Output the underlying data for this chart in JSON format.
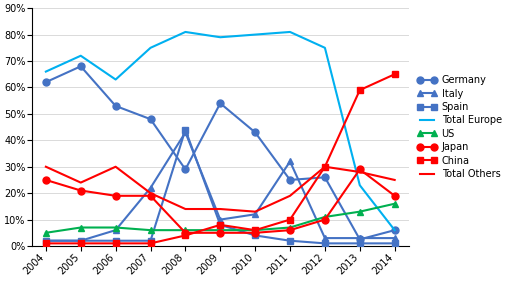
{
  "years": [
    2004,
    2005,
    2006,
    2007,
    2008,
    2009,
    2010,
    2011,
    2012,
    2013,
    2014
  ],
  "series": [
    {
      "name": "Germany",
      "values": [
        0.62,
        0.68,
        0.53,
        0.48,
        0.29,
        0.54,
        0.43,
        0.25,
        0.26,
        0.025,
        0.06
      ],
      "color": "#4472C4",
      "marker": "o",
      "linewidth": 1.5,
      "markersize": 5
    },
    {
      "name": "Italy",
      "values": [
        0.02,
        0.02,
        0.06,
        0.22,
        0.43,
        0.1,
        0.12,
        0.32,
        0.03,
        0.03,
        0.03
      ],
      "color": "#4472C4",
      "marker": "^",
      "linewidth": 1.5,
      "markersize": 5
    },
    {
      "name": "Spain",
      "values": [
        0.02,
        0.02,
        0.02,
        0.02,
        0.44,
        0.08,
        0.04,
        0.02,
        0.01,
        0.01,
        0.01
      ],
      "color": "#4472C4",
      "marker": "s",
      "linewidth": 1.5,
      "markersize": 5
    },
    {
      "name": "Total Europe",
      "values": [
        0.66,
        0.72,
        0.63,
        0.75,
        0.81,
        0.79,
        0.8,
        0.81,
        0.75,
        0.23,
        0.06
      ],
      "color": "#00B0F0",
      "marker": "None",
      "linewidth": 1.5,
      "markersize": 0
    },
    {
      "name": "US",
      "values": [
        0.05,
        0.07,
        0.07,
        0.06,
        0.06,
        0.06,
        0.06,
        0.07,
        0.11,
        0.13,
        0.16
      ],
      "color": "#00B050",
      "marker": "^",
      "linewidth": 1.5,
      "markersize": 5
    },
    {
      "name": "Japan",
      "values": [
        0.25,
        0.21,
        0.19,
        0.19,
        0.05,
        0.05,
        0.05,
        0.06,
        0.1,
        0.29,
        0.19
      ],
      "color": "#FF0000",
      "marker": "o",
      "linewidth": 1.5,
      "markersize": 5
    },
    {
      "name": "China",
      "values": [
        0.01,
        0.01,
        0.01,
        0.01,
        0.04,
        0.08,
        0.06,
        0.1,
        0.3,
        0.59,
        0.65
      ],
      "color": "#FF0000",
      "marker": "s",
      "linewidth": 1.5,
      "markersize": 5
    },
    {
      "name": "Total Others",
      "values": [
        0.3,
        0.24,
        0.3,
        0.2,
        0.14,
        0.14,
        0.13,
        0.19,
        0.3,
        0.28,
        0.25
      ],
      "color": "#FF0000",
      "marker": "None",
      "linewidth": 1.5,
      "markersize": 0
    }
  ],
  "ylim": [
    0.0,
    0.9
  ],
  "yticks": [
    0.0,
    0.1,
    0.2,
    0.3,
    0.4,
    0.5,
    0.6,
    0.7,
    0.8,
    0.9
  ],
  "bg_color": "#FFFFFF"
}
